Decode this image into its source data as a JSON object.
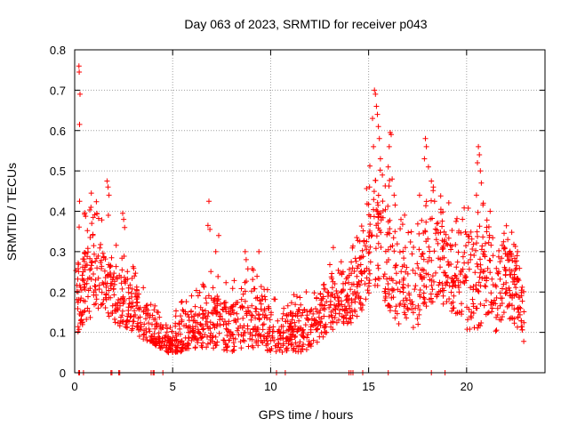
{
  "chart_data": {
    "type": "scatter",
    "title": "Day 063 of 2023, SRMTID for receiver p043",
    "xlabel": "GPS time / hours",
    "ylabel": "SRMTID / TECUs",
    "xlim": [
      0,
      24
    ],
    "ylim": [
      0,
      0.8
    ],
    "x_ticks": [
      0,
      5,
      10,
      15,
      20
    ],
    "y_ticks": [
      0,
      0.1,
      0.2,
      0.3,
      0.4,
      0.5,
      0.6,
      0.7,
      0.8
    ],
    "x_tick_labels": [
      "0",
      "5",
      "10",
      "15",
      "20"
    ],
    "y_tick_labels": [
      "0",
      "0.1",
      "0.2",
      "0.3",
      "0.4",
      "0.5",
      "0.6",
      "0.7",
      "0.8"
    ],
    "grid": true,
    "marker": "plus",
    "series_color": "#ff0000",
    "envelope": {
      "description": "Approximate typical band (low, mid, high) of the dense SRMTID point cloud versus GPS hour",
      "hours": [
        0.0,
        0.5,
        1.0,
        1.5,
        2.0,
        2.5,
        3.0,
        3.5,
        4.0,
        4.5,
        5.0,
        5.5,
        6.0,
        6.5,
        7.0,
        7.5,
        8.0,
        8.5,
        9.0,
        9.5,
        10.0,
        10.5,
        11.0,
        11.5,
        12.0,
        12.5,
        13.0,
        13.5,
        14.0,
        14.5,
        15.0,
        15.5,
        16.0,
        16.5,
        17.0,
        17.5,
        18.0,
        18.5,
        19.0,
        19.5,
        20.0,
        20.5,
        21.0,
        21.5,
        22.0,
        22.5,
        23.0
      ],
      "low": [
        0.09,
        0.12,
        0.14,
        0.16,
        0.12,
        0.1,
        0.1,
        0.08,
        0.07,
        0.05,
        0.05,
        0.05,
        0.06,
        0.06,
        0.06,
        0.05,
        0.05,
        0.06,
        0.06,
        0.06,
        0.05,
        0.05,
        0.05,
        0.05,
        0.06,
        0.08,
        0.1,
        0.12,
        0.12,
        0.14,
        0.18,
        0.2,
        0.16,
        0.12,
        0.12,
        0.1,
        0.16,
        0.18,
        0.16,
        0.14,
        0.1,
        0.1,
        0.14,
        0.1,
        0.14,
        0.12,
        0.06
      ],
      "mid": [
        0.17,
        0.22,
        0.25,
        0.22,
        0.18,
        0.17,
        0.16,
        0.13,
        0.1,
        0.08,
        0.08,
        0.09,
        0.11,
        0.12,
        0.13,
        0.12,
        0.11,
        0.13,
        0.14,
        0.13,
        0.11,
        0.1,
        0.1,
        0.1,
        0.12,
        0.14,
        0.16,
        0.18,
        0.18,
        0.22,
        0.3,
        0.34,
        0.28,
        0.22,
        0.24,
        0.2,
        0.28,
        0.32,
        0.26,
        0.22,
        0.25,
        0.26,
        0.24,
        0.18,
        0.24,
        0.22,
        0.12
      ],
      "high": [
        0.26,
        0.32,
        0.36,
        0.3,
        0.26,
        0.24,
        0.22,
        0.18,
        0.14,
        0.12,
        0.12,
        0.14,
        0.16,
        0.18,
        0.2,
        0.18,
        0.17,
        0.2,
        0.22,
        0.2,
        0.16,
        0.15,
        0.15,
        0.16,
        0.18,
        0.2,
        0.22,
        0.25,
        0.24,
        0.3,
        0.42,
        0.46,
        0.4,
        0.32,
        0.34,
        0.3,
        0.38,
        0.4,
        0.36,
        0.32,
        0.34,
        0.38,
        0.34,
        0.26,
        0.32,
        0.28,
        0.18
      ]
    },
    "peaks": [
      {
        "x": 0.22,
        "y": 0.76
      },
      {
        "x": 0.23,
        "y": 0.745
      },
      {
        "x": 0.27,
        "y": 0.69
      },
      {
        "x": 0.25,
        "y": 0.615
      },
      {
        "x": 0.25,
        "y": 0.425
      },
      {
        "x": 0.85,
        "y": 0.445
      },
      {
        "x": 0.83,
        "y": 0.41
      },
      {
        "x": 0.87,
        "y": 0.37
      },
      {
        "x": 1.65,
        "y": 0.475
      },
      {
        "x": 1.7,
        "y": 0.46
      },
      {
        "x": 1.75,
        "y": 0.44
      },
      {
        "x": 1.72,
        "y": 0.39
      },
      {
        "x": 2.45,
        "y": 0.395
      },
      {
        "x": 2.5,
        "y": 0.38
      },
      {
        "x": 2.55,
        "y": 0.36
      },
      {
        "x": 6.85,
        "y": 0.425
      },
      {
        "x": 6.8,
        "y": 0.365
      },
      {
        "x": 6.9,
        "y": 0.355
      },
      {
        "x": 7.2,
        "y": 0.3
      },
      {
        "x": 7.35,
        "y": 0.34
      },
      {
        "x": 8.7,
        "y": 0.3
      },
      {
        "x": 8.75,
        "y": 0.28
      },
      {
        "x": 9.4,
        "y": 0.3
      },
      {
        "x": 13.2,
        "y": 0.31
      },
      {
        "x": 13.6,
        "y": 0.275
      },
      {
        "x": 15.3,
        "y": 0.7
      },
      {
        "x": 15.35,
        "y": 0.69
      },
      {
        "x": 15.4,
        "y": 0.66
      },
      {
        "x": 15.45,
        "y": 0.64
      },
      {
        "x": 15.2,
        "y": 0.63
      },
      {
        "x": 15.5,
        "y": 0.61
      },
      {
        "x": 15.55,
        "y": 0.58
      },
      {
        "x": 15.25,
        "y": 0.56
      },
      {
        "x": 15.6,
        "y": 0.53
      },
      {
        "x": 15.7,
        "y": 0.49
      },
      {
        "x": 15.05,
        "y": 0.46
      },
      {
        "x": 16.1,
        "y": 0.595
      },
      {
        "x": 16.15,
        "y": 0.59
      },
      {
        "x": 16.05,
        "y": 0.56
      },
      {
        "x": 16.0,
        "y": 0.51
      },
      {
        "x": 16.2,
        "y": 0.48
      },
      {
        "x": 16.3,
        "y": 0.44
      },
      {
        "x": 17.6,
        "y": 0.44
      },
      {
        "x": 17.9,
        "y": 0.58
      },
      {
        "x": 17.95,
        "y": 0.56
      },
      {
        "x": 17.85,
        "y": 0.53
      },
      {
        "x": 18.05,
        "y": 0.51
      },
      {
        "x": 18.2,
        "y": 0.475
      },
      {
        "x": 18.3,
        "y": 0.46
      },
      {
        "x": 20.6,
        "y": 0.56
      },
      {
        "x": 20.65,
        "y": 0.54
      },
      {
        "x": 20.55,
        "y": 0.52
      },
      {
        "x": 20.7,
        "y": 0.5
      },
      {
        "x": 20.75,
        "y": 0.47
      },
      {
        "x": 20.5,
        "y": 0.44
      },
      {
        "x": 20.85,
        "y": 0.42
      },
      {
        "x": 21.2,
        "y": 0.4
      },
      {
        "x": 22.1,
        "y": 0.33
      },
      {
        "x": 22.6,
        "y": 0.3
      }
    ],
    "zero_points": [
      0.2,
      0.25,
      0.45,
      1.85,
      1.9,
      2.25,
      2.3,
      3.9,
      4.0,
      4.05,
      4.5,
      10.3,
      10.75,
      14.0,
      14.1,
      14.2,
      14.7,
      16.0,
      18.2,
      18.9
    ]
  }
}
